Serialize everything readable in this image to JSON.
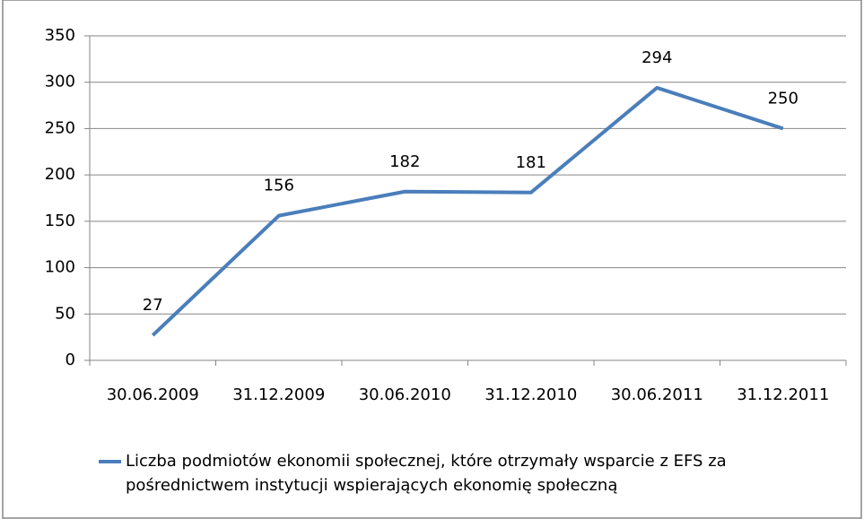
{
  "chart_data": {
    "type": "line",
    "categories": [
      "30.06.2009",
      "31.12.2009",
      "30.06.2010",
      "31.12.2010",
      "30.06.2011",
      "31.12.2011"
    ],
    "series": [
      {
        "name": "Liczba podmiotów ekonomii społecznej, które otrzymały wsparcie z EFS za pośrednictwem instytucji wspierających ekonomię społeczną",
        "color": "#4a7ebb",
        "values": [
          27,
          156,
          182,
          181,
          294,
          250
        ]
      }
    ],
    "ylim": [
      0,
      350
    ],
    "yticks": [
      0,
      50,
      100,
      150,
      200,
      250,
      300,
      350
    ],
    "grid": true,
    "legend": "bottom",
    "data_labels": true
  }
}
